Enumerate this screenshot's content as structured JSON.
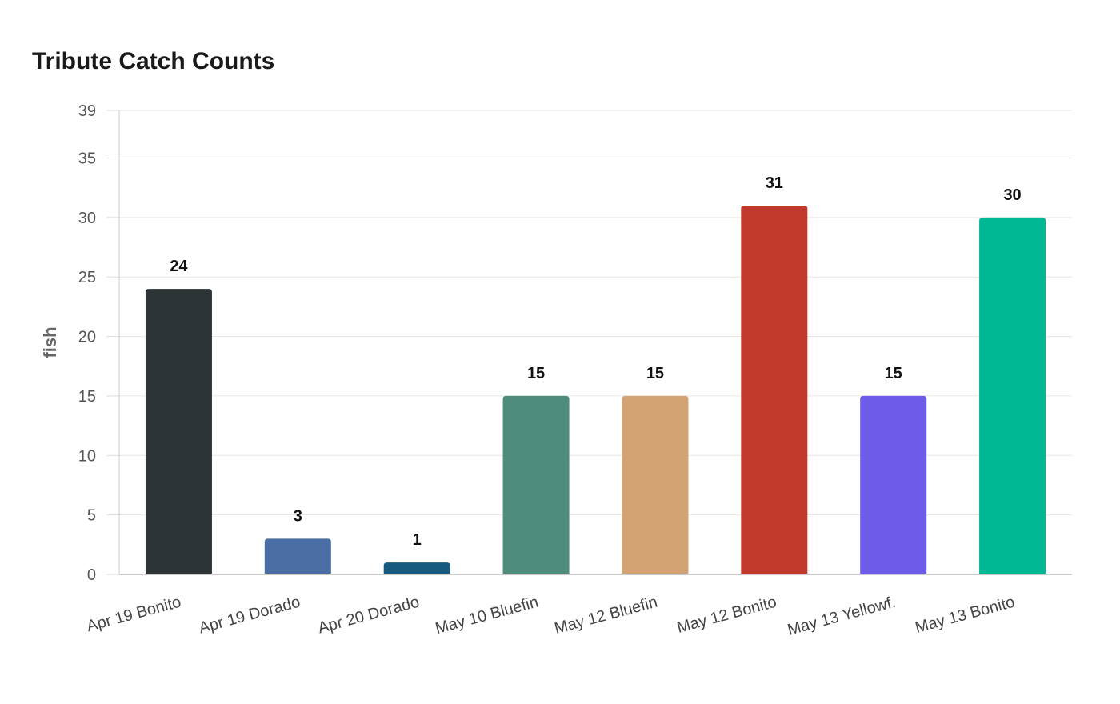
{
  "chart_data": {
    "type": "bar",
    "title": "Tribute Catch Counts",
    "xlabel": "",
    "ylabel": "fish",
    "ylim": [
      0,
      39
    ],
    "yticks": [
      0,
      5,
      10,
      15,
      20,
      25,
      30,
      35,
      39
    ],
    "grid": true,
    "categories": [
      "Apr 19 Bonito",
      "Apr 19 Dorado",
      "Apr 20 Dorado",
      "May 10 Bluefin",
      "May 12 Bluefin",
      "May 12 Bonito",
      "May 13 Yellowf.",
      "May 13 Bonito"
    ],
    "values": [
      24,
      3,
      1,
      15,
      15,
      31,
      15,
      30
    ],
    "colors": [
      "#2d3436",
      "#4a6da3",
      "#165a80",
      "#4e8d7c",
      "#d4a373",
      "#c0392b",
      "#6c5ce7",
      "#00b894"
    ],
    "data_labels": true
  }
}
